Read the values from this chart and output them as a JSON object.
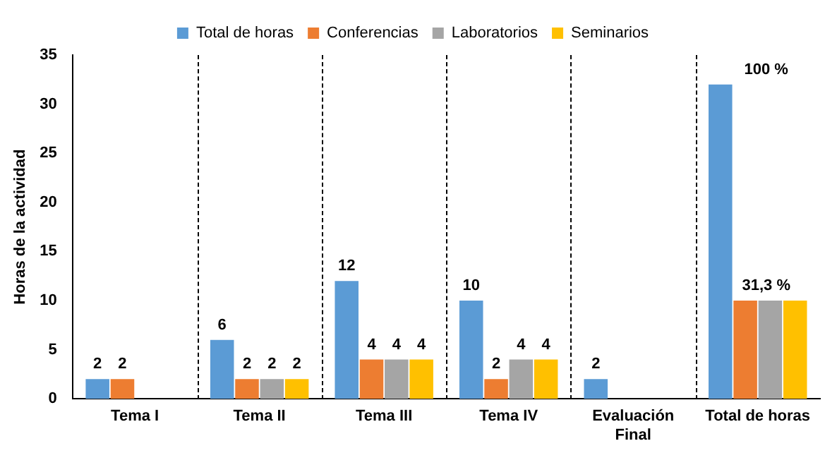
{
  "chart_data": {
    "type": "bar",
    "ylabel": "Horas de la actividad",
    "categories": [
      "Tema I",
      "Tema II",
      "Tema III",
      "Tema IV",
      "Evaluación Final",
      "Total de horas"
    ],
    "series": [
      {
        "name": "Total de horas",
        "color": "#5b9bd5",
        "values": [
          2,
          6,
          12,
          10,
          2,
          32
        ],
        "value_labels": [
          "2",
          "6",
          "12",
          "10",
          "2",
          null
        ]
      },
      {
        "name": "Conferencias",
        "color": "#ed7d31",
        "values": [
          2,
          2,
          4,
          2,
          null,
          10
        ],
        "value_labels": [
          "2",
          "2",
          "4",
          "2",
          null,
          null
        ]
      },
      {
        "name": "Laboratorios",
        "color": "#a5a5a5",
        "values": [
          null,
          2,
          4,
          4,
          null,
          10
        ],
        "value_labels": [
          null,
          "2",
          "4",
          "4",
          null,
          null
        ]
      },
      {
        "name": "Seminarios",
        "color": "#ffc000",
        "values": [
          null,
          2,
          4,
          4,
          null,
          10
        ],
        "value_labels": [
          null,
          "2",
          "4",
          "4",
          null,
          null
        ]
      }
    ],
    "annotations": [
      "100 %",
      "31,3 %"
    ],
    "ylim": [
      0,
      35
    ],
    "yticks": [
      0,
      5,
      10,
      15,
      20,
      25,
      30,
      35
    ],
    "grid": false,
    "legend": "top"
  }
}
